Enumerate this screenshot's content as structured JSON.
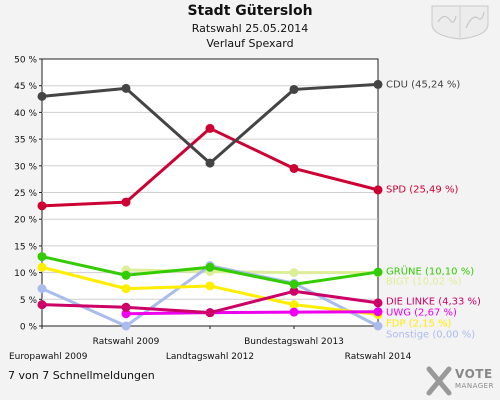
{
  "header": {
    "title": "Stadt Gütersloh",
    "subtitle": "Ratswahl 25.05.2014",
    "subtitle2": "Verlauf Spexard"
  },
  "footer": {
    "text": "7 von 7 Schnellmeldungen"
  },
  "logo": {
    "line1": "VOTE",
    "line2": "MANAGER"
  },
  "chart_data": {
    "type": "line",
    "categories": [
      "Europawahl 2009",
      "Ratswahl 2009",
      "Landtagswahl 2012",
      "Bundestagswahl 2013",
      "Ratswahl 2014"
    ],
    "ylim": [
      0,
      50
    ],
    "yticks": [
      0,
      5,
      10,
      15,
      20,
      25,
      30,
      35,
      40,
      45,
      50
    ],
    "ytick_labels": [
      "0 %",
      "5 %",
      "10 %",
      "15 %",
      "20 %",
      "25 %",
      "30 %",
      "35 %",
      "40 %",
      "45 %",
      "50 %"
    ],
    "grid": true,
    "series": [
      {
        "name": "CDU",
        "label": "CDU (45,24 %)",
        "color": "#444444",
        "values": [
          43.0,
          44.5,
          30.5,
          44.3,
          45.24
        ]
      },
      {
        "name": "SPD",
        "label": "SPD (25,49 %)",
        "color": "#cc0033",
        "values": [
          22.5,
          23.2,
          37.0,
          29.5,
          25.49
        ]
      },
      {
        "name": "GRÜNE",
        "label": "GRÜNE (10,10 %)",
        "color": "#33cc00",
        "values": [
          13.0,
          9.5,
          11.0,
          7.8,
          10.1
        ]
      },
      {
        "name": "BIGT",
        "label": "BIGT (10,02 %)",
        "color": "#ddee99",
        "values": [
          null,
          10.5,
          10.2,
          10.0,
          10.02
        ]
      },
      {
        "name": "DIE LINKE",
        "label": "DIE LINKE (4,33 %)",
        "color": "#cc0066",
        "values": [
          4.0,
          3.5,
          2.5,
          6.5,
          4.33
        ]
      },
      {
        "name": "UWG",
        "label": "UWG (2,67 %)",
        "color": "#ee00ee",
        "values": [
          null,
          2.3,
          2.5,
          2.6,
          2.67
        ]
      },
      {
        "name": "FDP",
        "label": "FDP (2,15 %)",
        "color": "#ffee00",
        "values": [
          11.0,
          7.0,
          7.5,
          4.0,
          2.15
        ]
      },
      {
        "name": "Sonstige",
        "label": "Sonstige (0,00 %)",
        "color": "#aabbee",
        "values": [
          7.0,
          0.0,
          11.3,
          8.0,
          0.0
        ]
      }
    ]
  }
}
